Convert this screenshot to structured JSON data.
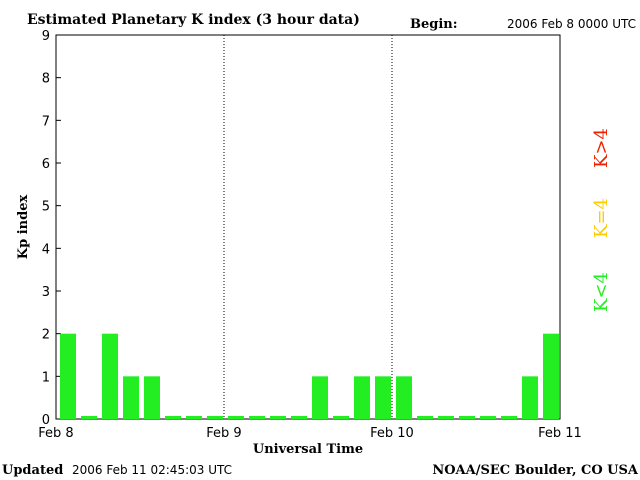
{
  "chart_data": {
    "type": "bar",
    "title": "Estimated Planetary K index (3 hour data)",
    "begin_label": "Begin:",
    "begin_value": "2006 Feb 8 0000 UTC",
    "xlabel": "Universal Time",
    "ylabel": "Kp index",
    "ylim": [
      0,
      9
    ],
    "yticks": [
      "0",
      "1",
      "2",
      "3",
      "4",
      "5",
      "6",
      "7",
      "8",
      "9"
    ],
    "xticks": [
      "Feb 8",
      "Feb 9",
      "Feb 10",
      "Feb 11"
    ],
    "interval_hours": 3,
    "values": [
      2,
      0,
      2,
      1,
      1,
      0,
      0,
      0,
      0,
      0,
      0,
      0,
      1,
      0,
      1,
      1,
      1,
      0,
      0,
      0,
      0,
      0,
      1,
      2
    ],
    "colors": {
      "below_4": "#22ee22",
      "equal_4": "#ffcc00",
      "above_4": "#ee2200"
    },
    "legend": {
      "low": "K<4",
      "mid": "K=4",
      "high": "K>4"
    }
  },
  "footer": {
    "updated_label": "Updated",
    "updated_value": "2006 Feb 11 02:45:03 UTC",
    "source": "NOAA/SEC Boulder, CO USA"
  }
}
